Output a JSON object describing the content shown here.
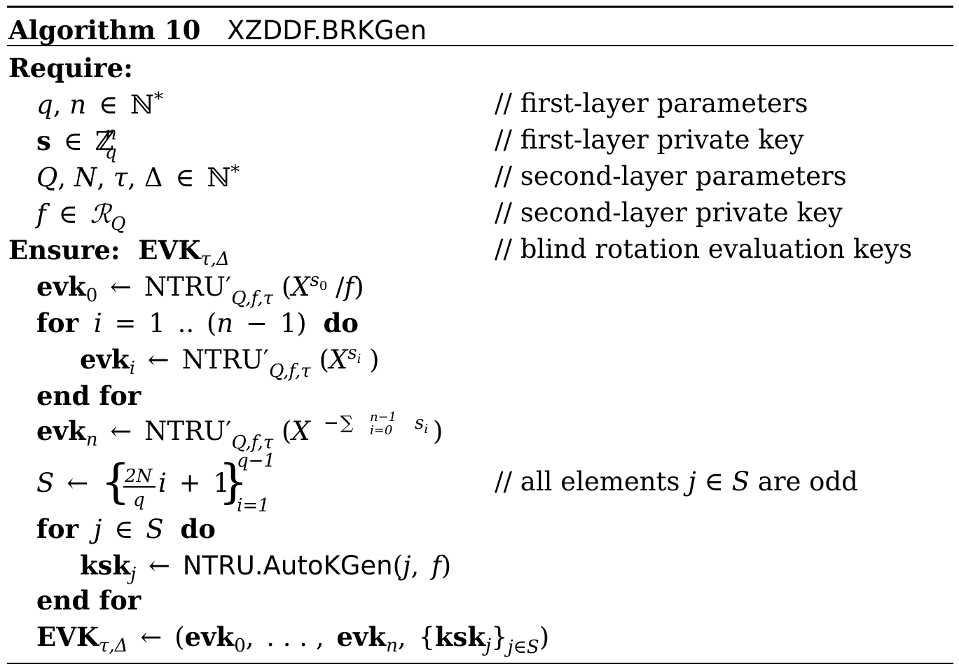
{
  "header": {
    "algorithm_label": "Algorithm 10",
    "algorithm_name": "XZDDF.BRKGen"
  },
  "require_label": "Require:",
  "ensure_label": "Ensure:",
  "comment_prefix": "//",
  "requires": [
    {
      "math": "q, n ∈ ℕ*",
      "comment": "first-layer parameters"
    },
    {
      "math": "s ∈ ℤ_q^n",
      "comment": "first-layer private key"
    },
    {
      "math": "Q, N, τ, Δ ∈ ℕ*",
      "comment": "second-layer parameters"
    },
    {
      "math": "f ∈ ℛ_Q",
      "comment": "second-layer private key"
    }
  ],
  "ensure": {
    "math": "EVK_τ,Δ",
    "comment": "blind rotation evaluation keys"
  },
  "steps": [
    {
      "math": "evk_0 ← NTRU'_Q,f,τ(X^s0 / f)"
    },
    {
      "keyword_for": "for",
      "math": "i = 1 .. (n − 1)",
      "keyword_do": "do"
    },
    {
      "math": "evk_i ← NTRU'_Q,f,τ(X^si)"
    },
    {
      "keyword": "end for"
    },
    {
      "math": "evk_n ← NTRU'_Q,f,τ(X^(−∑_{i=0}^{n−1} s_i))"
    },
    {
      "math": "S ← {2N/q · i + 1}_{i=1}^{q−1}",
      "comment": "all elements j ∈ S are odd"
    },
    {
      "keyword_for": "for",
      "math": "j ∈ S",
      "keyword_do": "do"
    },
    {
      "math": "ksk_j ← NTRU.AutoKGen(j, f)"
    },
    {
      "keyword": "end for"
    },
    {
      "math": "EVK_τ,Δ ← (evk_0, . . . , evk_n, {ksk_j}_j∈S)"
    }
  ],
  "symbols": {
    "q": "q",
    "n": "n",
    "N": "N",
    "Q": "Q",
    "tau": "τ",
    "Delta": "Δ",
    "f": "f",
    "s": "s",
    "i": "i",
    "j": "j",
    "S": "S",
    "X": "X",
    "in": "∈",
    "arrow": "←",
    "comma": ",",
    "eq": "=",
    "minus": "−",
    "plus": "+",
    "Nstar": "ℕ",
    "star": "*",
    "Z": "ℤ",
    "R": "ℛ",
    "evk": "evk",
    "ksk": "ksk",
    "EVK": "EVK",
    "NTRU_prime": "NTRU′",
    "QFT": "Q,f,τ",
    "tauDelta": "τ,Δ",
    "ntru_autokgen": "NTRU.AutoKGen",
    "zero": "0",
    "one": "1",
    "two_N": "2N",
    "dots": ". . . ,",
    "dotdot": "..",
    "sum": "∑",
    "n_minus_1": "n−1",
    "i_eq_0": "i=0",
    "q_minus_1": "q−1",
    "i_eq_1": "i=1",
    "j_in_S": "j∈S",
    "slash": "/",
    "lparen": "(",
    "rparen": ")",
    "lbrace": "{",
    "rbrace": "}"
  }
}
